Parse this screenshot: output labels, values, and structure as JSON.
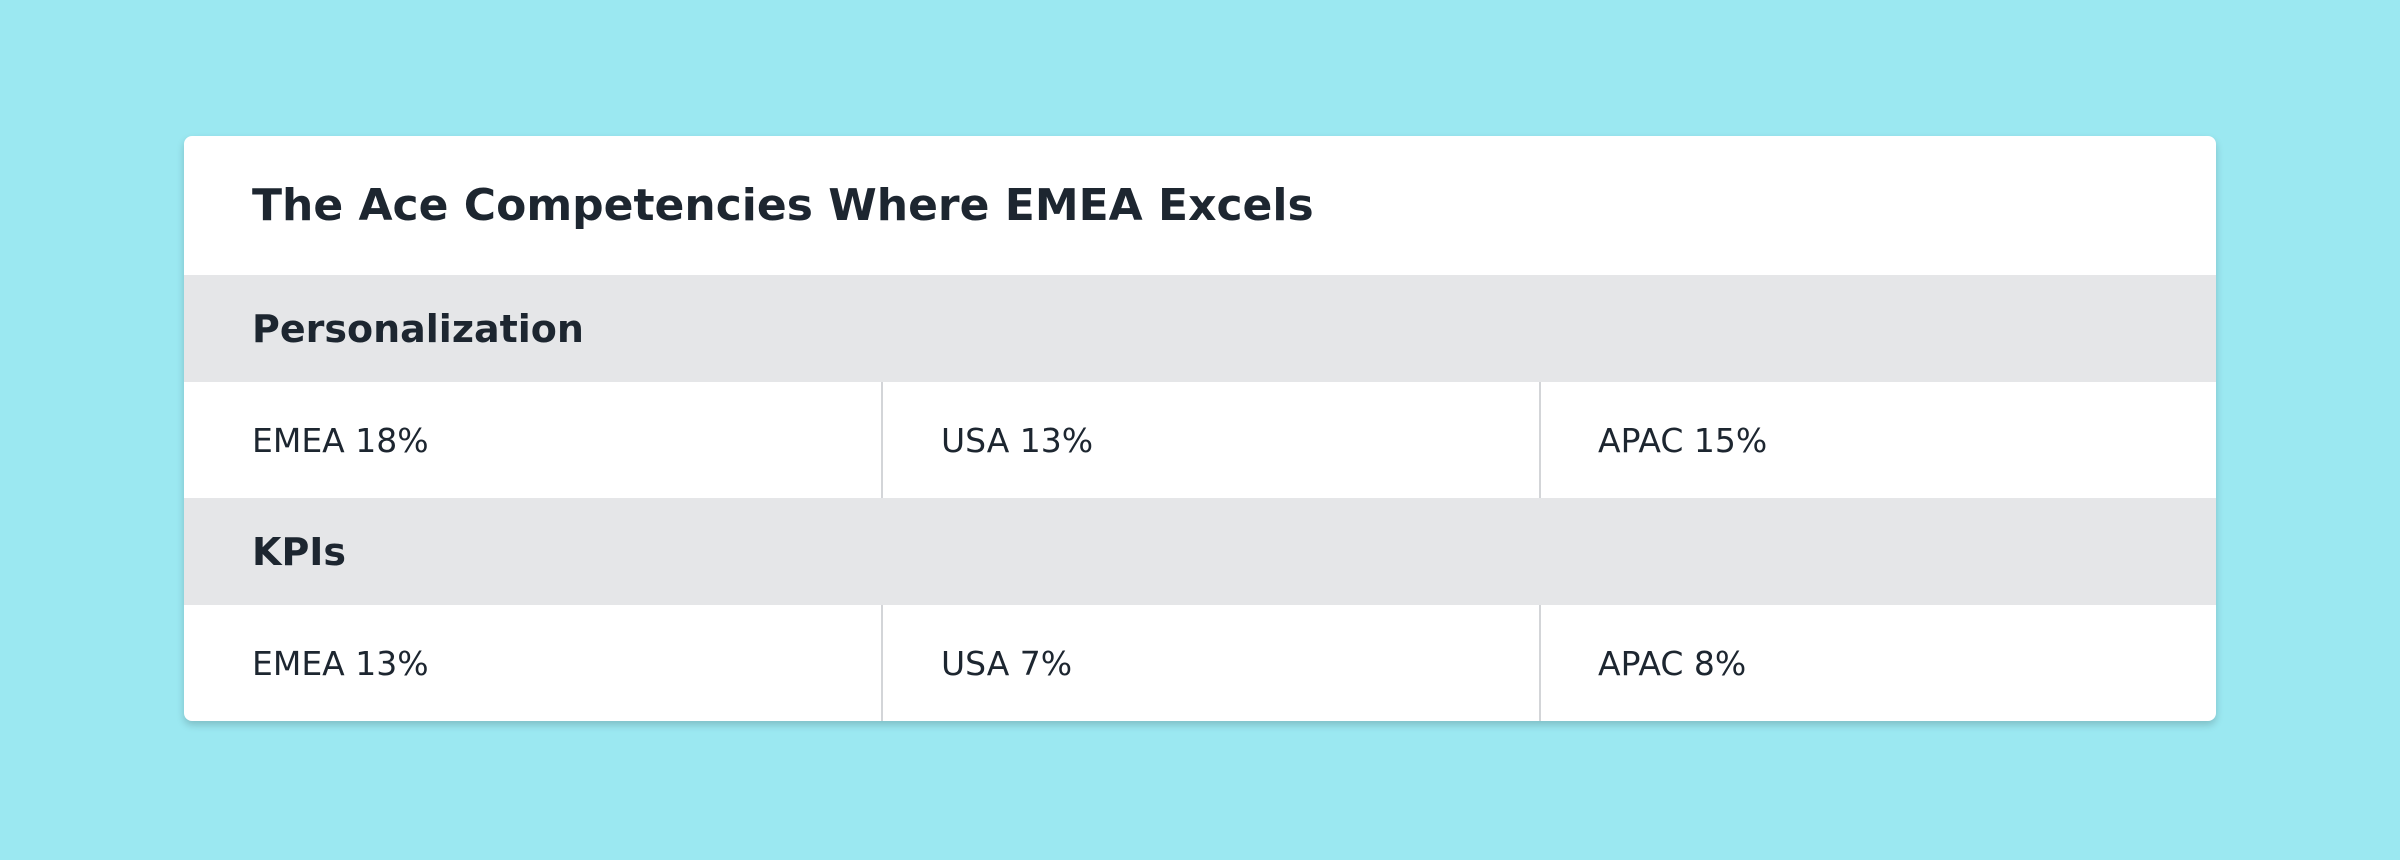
{
  "card": {
    "title": "The Ace Competencies Where EMEA Excels",
    "sections": [
      {
        "heading": "Personalization",
        "cells": [
          "EMEA 18%",
          "USA 13%",
          "APAC 15%"
        ]
      },
      {
        "heading": "KPIs",
        "cells": [
          "EMEA 13%",
          "USA 7%",
          "APAC 8%"
        ]
      }
    ]
  }
}
